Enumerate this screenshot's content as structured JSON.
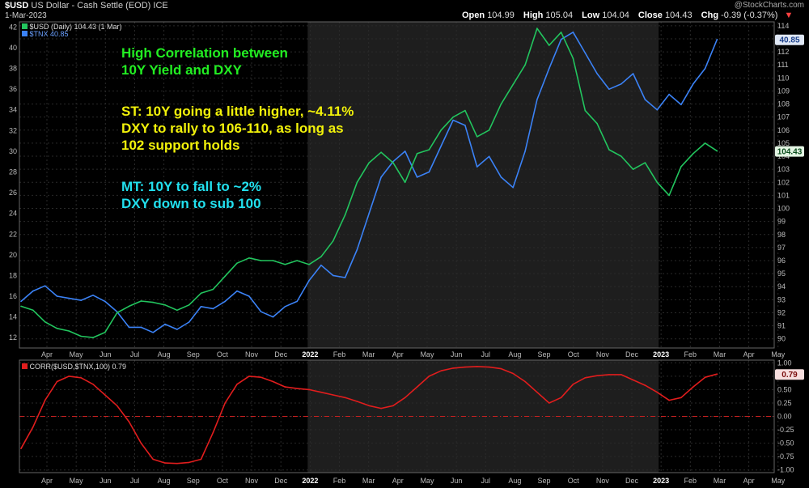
{
  "header": {
    "symbol": "$USD",
    "description": "US Dollar - Cash Settle (EOD)",
    "exchange": "ICE",
    "date": "1-Mar-2023",
    "watermark": "@StockCharts.com",
    "ohlc": {
      "open_label": "Open",
      "open": "104.99",
      "high_label": "High",
      "high": "105.04",
      "low_label": "Low",
      "low": "104.04",
      "close_label": "Close",
      "close": "104.43",
      "chg_label": "Chg",
      "chg": "-0.39 (-0.37%)"
    }
  },
  "legend": {
    "usd": "$USD (Daily) 104.43 (1 Mar)",
    "tnx": "$TNX 40.85",
    "corr": "CORR($USD,$TNX,100) 0.79"
  },
  "annotations": {
    "green_1": "High Correlation between",
    "green_2": "10Y Yield and DXY",
    "yellow_1": "ST: 10Y going a little higher, ~4.11%",
    "yellow_2": "DXY to rally to 106-110, as long as",
    "yellow_3": "102 support holds",
    "cyan_1": "MT: 10Y to fall to ~2%",
    "cyan_2": "DXY down to sub 100"
  },
  "value_badges": {
    "tnx_last": "40.85",
    "usd_last": "104.43",
    "corr_last": "0.79"
  },
  "colors": {
    "usd": "#22c55e",
    "tnx": "#3b82f6",
    "corr": "#e11d1d",
    "green_text": "#22ee22",
    "yellow_text": "#f2f20a",
    "cyan_text": "#22e0ee"
  },
  "chart_data": [
    {
      "type": "line",
      "x_labels": [
        "Apr",
        "May",
        "Jun",
        "Jul",
        "Aug",
        "Sep",
        "Oct",
        "Nov",
        "Dec",
        "2022",
        "Feb",
        "Mar",
        "Apr",
        "May",
        "Jun",
        "Jul",
        "Aug",
        "Sep",
        "Oct",
        "Nov",
        "Dec",
        "2023",
        "Feb",
        "Mar",
        "Apr",
        "May"
      ],
      "y_left_ticks": [
        12,
        14,
        16,
        18,
        20,
        22,
        24,
        26,
        28,
        30,
        32,
        34,
        36,
        38,
        40,
        42
      ],
      "y_right_ticks": [
        90,
        91,
        92,
        93,
        94,
        95,
        96,
        97,
        98,
        99,
        100,
        101,
        102,
        103,
        104,
        105,
        106,
        107,
        108,
        109,
        110,
        111,
        112,
        113,
        114
      ],
      "ylim_left": [
        11,
        42.5
      ],
      "ylim_right": [
        89.3,
        114.3
      ],
      "series": [
        {
          "name": "$USD (Daily)",
          "axis": "right",
          "values": [
            92.5,
            92.2,
            91.3,
            90.8,
            90.6,
            90.2,
            90.1,
            90.5,
            92.0,
            92.5,
            92.9,
            92.8,
            92.6,
            92.2,
            92.6,
            93.5,
            93.8,
            94.8,
            95.8,
            96.2,
            96.0,
            96.0,
            95.7,
            96.0,
            95.7,
            96.3,
            97.5,
            99.5,
            102.0,
            103.5,
            104.3,
            103.5,
            102.0,
            104.2,
            104.5,
            106.0,
            107.0,
            107.5,
            105.5,
            106.0,
            108.0,
            109.5,
            111.0,
            113.8,
            112.5,
            113.5,
            111.5,
            107.5,
            106.5,
            104.5,
            104.0,
            103.0,
            103.5,
            102.0,
            101.0,
            103.2,
            104.2,
            105.0,
            104.4
          ]
        },
        {
          "name": "$TNX",
          "axis": "left",
          "values": [
            15.5,
            16.5,
            17.0,
            16.0,
            15.8,
            15.6,
            16.1,
            15.5,
            14.5,
            13.0,
            13.0,
            12.5,
            13.3,
            12.8,
            13.5,
            15.0,
            14.8,
            15.5,
            16.5,
            16.0,
            14.5,
            14.0,
            15.0,
            15.5,
            17.5,
            19.0,
            18.0,
            17.8,
            20.5,
            24.0,
            27.5,
            29.0,
            30.0,
            27.5,
            28.0,
            30.5,
            33.0,
            32.5,
            28.5,
            29.5,
            27.5,
            26.5,
            30.0,
            35.0,
            38.0,
            40.8,
            41.5,
            39.5,
            37.5,
            36.0,
            36.5,
            37.5,
            35.0,
            34.0,
            35.5,
            34.5,
            36.5,
            38.0,
            40.8
          ]
        },
        {
          "name": "CORR($USD,$TNX,100)",
          "panel": "lower",
          "ylim": [
            -1.05,
            1.05
          ],
          "y_ticks": [
            -1.0,
            -0.75,
            -0.5,
            -0.25,
            0.0,
            0.25,
            0.5,
            0.75,
            1.0
          ],
          "values": [
            -0.6,
            -0.2,
            0.3,
            0.65,
            0.75,
            0.72,
            0.6,
            0.4,
            0.2,
            -0.1,
            -0.5,
            -0.8,
            -0.87,
            -0.88,
            -0.86,
            -0.8,
            -0.3,
            0.25,
            0.6,
            0.75,
            0.73,
            0.65,
            0.55,
            0.52,
            0.5,
            0.45,
            0.4,
            0.35,
            0.28,
            0.2,
            0.15,
            0.2,
            0.35,
            0.55,
            0.75,
            0.85,
            0.9,
            0.92,
            0.93,
            0.92,
            0.89,
            0.8,
            0.65,
            0.45,
            0.25,
            0.35,
            0.6,
            0.72,
            0.76,
            0.78,
            0.78,
            0.68,
            0.58,
            0.45,
            0.3,
            0.35,
            0.55,
            0.73,
            0.79
          ]
        }
      ]
    }
  ]
}
